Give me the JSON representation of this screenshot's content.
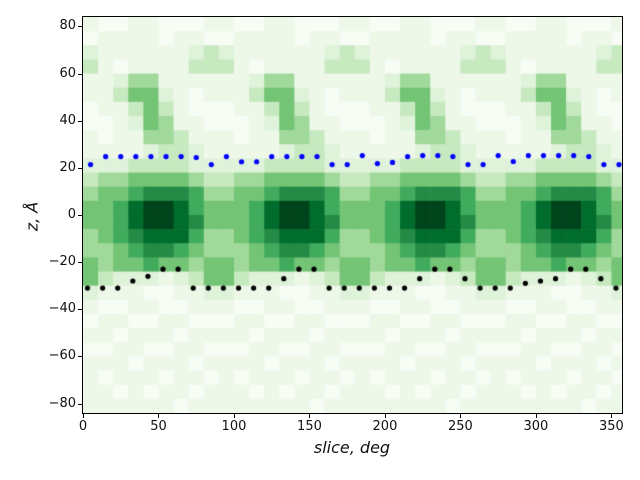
{
  "figure": {
    "background": "#ffffff"
  },
  "chart_data": {
    "type": "heatmap",
    "title": "",
    "xlabel": "slice, deg",
    "ylabel": "z, Å",
    "xlim": [
      0,
      357
    ],
    "ylim": [
      -84,
      84
    ],
    "x_ticks": {
      "values": [
        0,
        50,
        100,
        150,
        200,
        250,
        300,
        350
      ],
      "labels": [
        "0",
        "50",
        "100",
        "150",
        "200",
        "250",
        "300",
        "350"
      ]
    },
    "y_ticks": {
      "values": [
        80,
        60,
        40,
        20,
        0,
        -20,
        -40,
        -60,
        -80
      ],
      "labels": [
        "80",
        "60",
        "40",
        "20",
        "0",
        "−20",
        "−40",
        "−60",
        "−80"
      ]
    },
    "colormap": "Greens",
    "palette": [
      "#f7fcf5",
      "#edf8e9",
      "#dff3da",
      "#c7e9c0",
      "#a1d99b",
      "#74c476",
      "#41ab5d",
      "#238b45",
      "#006d2c",
      "#00441b"
    ],
    "grid": false,
    "legend": "none",
    "heatmap": {
      "description": "intensity 0-9 indexes into palette; pattern repeats every 90 deg",
      "col_width_deg": 10,
      "periods": 4,
      "period_deg": 90,
      "z_top": 84,
      "row_height_A": 6,
      "period_grid": [
        [
          1,
          0,
          0,
          1,
          1,
          0,
          0,
          0,
          1
        ],
        [
          0,
          1,
          1,
          1,
          1,
          0,
          1,
          1,
          0
        ],
        [
          2,
          1,
          1,
          1,
          1,
          1,
          1,
          2,
          3
        ],
        [
          3,
          1,
          0,
          1,
          1,
          1,
          1,
          3,
          3
        ],
        [
          1,
          1,
          2,
          4,
          4,
          1,
          1,
          1,
          1
        ],
        [
          1,
          1,
          3,
          5,
          5,
          2,
          1,
          0,
          1
        ],
        [
          0,
          1,
          1,
          3,
          5,
          3,
          1,
          0,
          0
        ],
        [
          0,
          0,
          1,
          2,
          5,
          4,
          1,
          1,
          0
        ],
        [
          1,
          0,
          1,
          1,
          4,
          4,
          3,
          1,
          1
        ],
        [
          1,
          1,
          1,
          1,
          2,
          3,
          3,
          2,
          1
        ],
        [
          2,
          2,
          2,
          3,
          3,
          3,
          3,
          2,
          2
        ],
        [
          3,
          4,
          4,
          5,
          5,
          5,
          5,
          4,
          3
        ],
        [
          4,
          5,
          5,
          6,
          7,
          7,
          7,
          6,
          4
        ],
        [
          5,
          5,
          6,
          8,
          9,
          9,
          8,
          6,
          5
        ],
        [
          5,
          5,
          6,
          8,
          9,
          9,
          8,
          7,
          5
        ],
        [
          4,
          5,
          6,
          7,
          8,
          8,
          8,
          6,
          4
        ],
        [
          4,
          4,
          5,
          6,
          7,
          7,
          6,
          5,
          4
        ],
        [
          5,
          4,
          5,
          5,
          6,
          5,
          5,
          4,
          5
        ],
        [
          5,
          3,
          2,
          2,
          2,
          1,
          2,
          3,
          5
        ],
        [
          2,
          1,
          1,
          1,
          0,
          0,
          1,
          1,
          2
        ],
        [
          1,
          0,
          0,
          1,
          1,
          0,
          0,
          1,
          1
        ],
        [
          0,
          1,
          1,
          0,
          0,
          1,
          1,
          0,
          0
        ],
        [
          1,
          1,
          0,
          1,
          1,
          1,
          0,
          1,
          1
        ],
        [
          0,
          0,
          1,
          1,
          0,
          0,
          1,
          1,
          0
        ],
        [
          1,
          1,
          1,
          0,
          1,
          1,
          1,
          0,
          1
        ],
        [
          1,
          0,
          1,
          1,
          1,
          0,
          1,
          1,
          0
        ],
        [
          1,
          1,
          0,
          1,
          0,
          1,
          1,
          0,
          1
        ],
        [
          1,
          1,
          1,
          1,
          1,
          1,
          0,
          1,
          1
        ]
      ]
    },
    "overlays": [
      {
        "name": "upper-boundary-dots",
        "marker": "circle",
        "color": "#0000ff",
        "radius_px": 2.6,
        "x": [
          5,
          15,
          25,
          35,
          45,
          55,
          65,
          75,
          85,
          95,
          105,
          115,
          125,
          135,
          145,
          155,
          165,
          175,
          185,
          195,
          205,
          215,
          225,
          235,
          245,
          255,
          265,
          275,
          285,
          295,
          305,
          315,
          325,
          335,
          345,
          355
        ],
        "z": [
          21.4,
          24.8,
          24.8,
          24.8,
          24.8,
          24.8,
          24.8,
          24.4,
          21.4,
          24.8,
          22.6,
          22.6,
          24.8,
          24.8,
          24.8,
          24.8,
          21.4,
          21.4,
          25.2,
          21.8,
          22.3,
          24.8,
          25.2,
          25.2,
          24.8,
          21.4,
          21.4,
          25.2,
          22.7,
          25.2,
          25.2,
          25.2,
          25.2,
          24.8,
          21.4,
          21.4
        ]
      },
      {
        "name": "lower-boundary-dots",
        "marker": "circle",
        "color": "#000000",
        "radius_px": 2.6,
        "x": [
          3,
          13,
          23,
          33,
          43,
          53,
          63,
          73,
          83,
          93,
          103,
          113,
          123,
          133,
          143,
          153,
          163,
          173,
          183,
          193,
          203,
          213,
          223,
          233,
          243,
          253,
          263,
          273,
          283,
          293,
          303,
          313,
          323,
          333,
          343,
          353
        ],
        "z": [
          -31,
          -31,
          -31,
          -28,
          -26,
          -23,
          -23,
          -31,
          -31,
          -31,
          -31,
          -31,
          -31,
          -27,
          -23,
          -23,
          -31,
          -31,
          -31,
          -31,
          -31,
          -31,
          -27,
          -23,
          -23,
          -27,
          -31,
          -31,
          -31,
          -29,
          -28,
          -27,
          -23,
          -23,
          -27,
          -31
        ]
      }
    ]
  }
}
